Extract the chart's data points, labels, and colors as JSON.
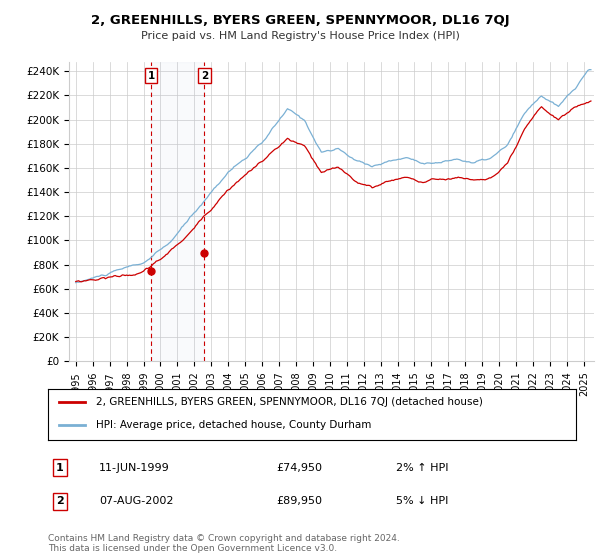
{
  "title": "2, GREENHILLS, BYERS GREEN, SPENNYMOOR, DL16 7QJ",
  "subtitle": "Price paid vs. HM Land Registry's House Price Index (HPI)",
  "legend_line1": "2, GREENHILLS, BYERS GREEN, SPENNYMOOR, DL16 7QJ (detached house)",
  "legend_line2": "HPI: Average price, detached house, County Durham",
  "sale1_label": "1",
  "sale1_date": "11-JUN-1999",
  "sale1_price": "£74,950",
  "sale1_hpi": "2% ↑ HPI",
  "sale2_label": "2",
  "sale2_date": "07-AUG-2002",
  "sale2_price": "£89,950",
  "sale2_hpi": "5% ↓ HPI",
  "footnote": "Contains HM Land Registry data © Crown copyright and database right 2024.\nThis data is licensed under the Open Government Licence v3.0.",
  "hpi_color": "#7ab0d4",
  "price_color": "#cc0000",
  "sale_marker_color": "#cc0000",
  "background_color": "#ffffff",
  "grid_color": "#cccccc",
  "yticks": [
    0,
    20000,
    40000,
    60000,
    80000,
    100000,
    120000,
    140000,
    160000,
    180000,
    200000,
    220000,
    240000
  ],
  "ylim": [
    0,
    248000
  ],
  "sale1_year": 1999.44,
  "sale1_value": 74950,
  "sale2_year": 2002.59,
  "sale2_value": 89950
}
